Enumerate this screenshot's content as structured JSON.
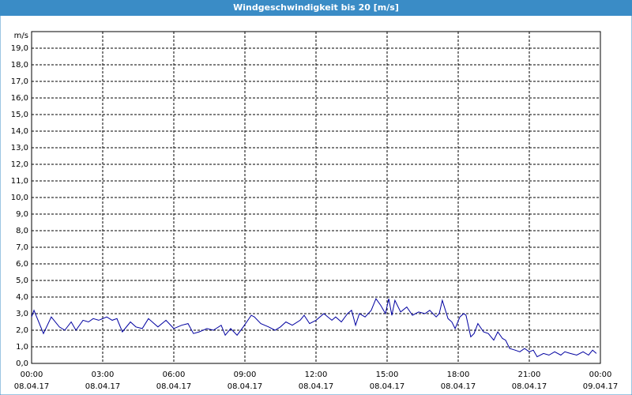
{
  "chart_data": {
    "type": "line",
    "title": "Windgeschwindigkeit bis 20 [m/s]",
    "y_label": "m/s",
    "x": [
      0,
      0.1,
      0.5,
      0.83,
      1.17,
      1.4,
      1.67,
      1.87,
      2.17,
      2.4,
      2.6,
      2.83,
      3.17,
      3.4,
      3.6,
      3.83,
      4.17,
      4.4,
      4.67,
      4.93,
      5.17,
      5.33,
      5.67,
      6,
      6.33,
      6.6,
      6.83,
      7.07,
      7.4,
      7.67,
      8,
      8.17,
      8.4,
      8.67,
      8.93,
      9.27,
      9.4,
      9.67,
      10,
      10.27,
      10.5,
      10.73,
      11,
      11.33,
      11.5,
      11.73,
      12,
      12.33,
      12.67,
      12.83,
      13.07,
      13.33,
      13.5,
      13.67,
      13.83,
      14.07,
      14.33,
      14.53,
      14.73,
      14.93,
      15.07,
      15.2,
      15.33,
      15.57,
      15.83,
      16.07,
      16.33,
      16.6,
      16.8,
      17.07,
      17.2,
      17.33,
      17.57,
      17.73,
      17.87,
      18.07,
      18.23,
      18.33,
      18.53,
      18.67,
      18.83,
      19.07,
      19.27,
      19.5,
      19.67,
      19.87,
      20,
      20.17,
      20.4,
      20.6,
      20.8,
      21,
      21.17,
      21.33,
      21.6,
      21.83,
      22.07,
      22.33,
      22.5,
      22.73,
      23,
      23.27,
      23.5,
      23.67,
      23.83
    ],
    "series": [
      {
        "name": "Windgeschwindigkeit",
        "color": "#0000a0",
        "values": [
          2.8,
          3.2,
          1.8,
          2.8,
          2.2,
          2.0,
          2.5,
          2.0,
          2.6,
          2.5,
          2.7,
          2.6,
          2.8,
          2.6,
          2.7,
          1.9,
          2.5,
          2.2,
          2.1,
          2.7,
          2.4,
          2.2,
          2.6,
          2.1,
          2.3,
          2.4,
          1.8,
          1.9,
          2.1,
          2.0,
          2.3,
          1.7,
          2.1,
          1.7,
          2.2,
          2.9,
          2.8,
          2.4,
          2.2,
          2.0,
          2.2,
          2.5,
          2.3,
          2.6,
          2.9,
          2.4,
          2.6,
          3.0,
          2.6,
          2.8,
          2.5,
          3.0,
          3.2,
          2.3,
          3.0,
          2.8,
          3.2,
          3.9,
          3.5,
          3.0,
          3.9,
          2.9,
          3.8,
          3.1,
          3.4,
          2.9,
          3.1,
          3.0,
          3.2,
          2.8,
          3.0,
          3.8,
          2.7,
          2.5,
          2.1,
          2.8,
          3.0,
          2.9,
          1.6,
          1.8,
          2.4,
          1.9,
          1.8,
          1.4,
          1.9,
          1.5,
          1.4,
          0.9,
          0.8,
          0.7,
          0.9,
          0.7,
          0.8,
          0.4,
          0.6,
          0.5,
          0.7,
          0.5,
          0.7,
          0.6,
          0.5,
          0.7,
          0.5,
          0.8,
          0.6
        ]
      }
    ],
    "xlim": [
      0,
      24
    ],
    "xticks": [
      {
        "value": 0,
        "label": "00:00"
      },
      {
        "value": 3,
        "label": "03:00"
      },
      {
        "value": 6,
        "label": "06:00"
      },
      {
        "value": 9,
        "label": "09:00"
      },
      {
        "value": 12,
        "label": "12:00"
      },
      {
        "value": 15,
        "label": "15:00"
      },
      {
        "value": 18,
        "label": "18:00"
      },
      {
        "value": 21,
        "label": "21:00"
      },
      {
        "value": 24,
        "label": "00:00"
      }
    ],
    "xtick_dates": [
      "08.04.17",
      "08.04.17",
      "08.04.17",
      "08.04.17",
      "08.04.17",
      "08.04.17",
      "08.04.17",
      "08.04.17",
      "09.04.17"
    ],
    "ylim": [
      0,
      20
    ],
    "yticks": [
      {
        "value": 0,
        "label": "0,0"
      },
      {
        "value": 1,
        "label": "1,0"
      },
      {
        "value": 2,
        "label": "2,0"
      },
      {
        "value": 3,
        "label": "3,0"
      },
      {
        "value": 4,
        "label": "4,0"
      },
      {
        "value": 5,
        "label": "5,0"
      },
      {
        "value": 6,
        "label": "6,0"
      },
      {
        "value": 7,
        "label": "7,0"
      },
      {
        "value": 8,
        "label": "8,0"
      },
      {
        "value": 9,
        "label": "9,0"
      },
      {
        "value": 10,
        "label": "10,0"
      },
      {
        "value": 11,
        "label": "11,0"
      },
      {
        "value": 12,
        "label": "12,0"
      },
      {
        "value": 13,
        "label": "13,0"
      },
      {
        "value": 14,
        "label": "14,0"
      },
      {
        "value": 15,
        "label": "15,0"
      },
      {
        "value": 16,
        "label": "16,0"
      },
      {
        "value": 17,
        "label": "17,0"
      },
      {
        "value": 18,
        "label": "18,0"
      },
      {
        "value": 19,
        "label": "19,0"
      }
    ],
    "grid": true
  }
}
